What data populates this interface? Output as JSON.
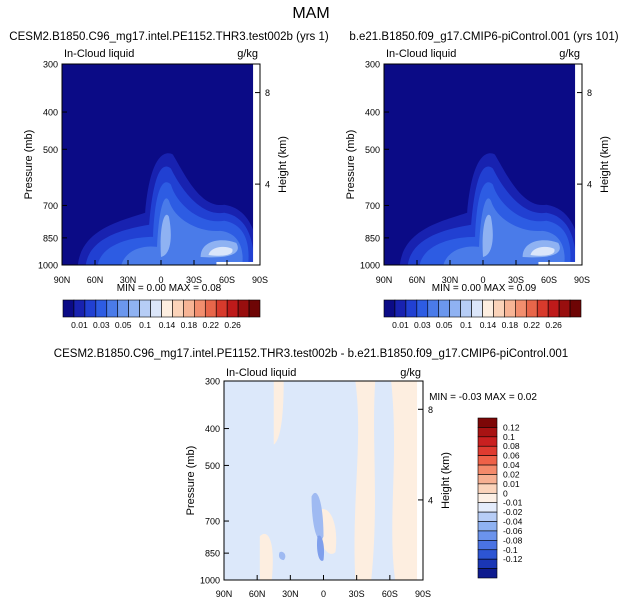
{
  "page_title": "MAM",
  "chart_data": [
    {
      "type": "heatmap",
      "title": "CESM2.B1850.C96_mg17.intel.PE1152.THR3.test002b (yrs 1)",
      "variable": "In-Cloud liquid",
      "units": "g/kg",
      "ylabel": "Pressure (mb)",
      "ylabel_right": "Height (km)",
      "x_ticks": [
        "90N",
        "60N",
        "30N",
        "0",
        "30S",
        "60S",
        "90S"
      ],
      "y_ticks": [
        "300",
        "400",
        "500",
        "700",
        "850",
        "1000"
      ],
      "y_right_ticks": [
        "8",
        "4"
      ],
      "stats": "MIN =  0.00   MAX =  0.08",
      "min": 0.0,
      "max": 0.08
    },
    {
      "type": "heatmap",
      "title": "b.e21.B1850.f09_g17.CMIP6-piControl.001 (yrs 101)",
      "variable": "In-Cloud liquid",
      "units": "g/kg",
      "ylabel": "Pressure (mb)",
      "ylabel_right": "Height (km)",
      "x_ticks": [
        "90N",
        "60N",
        "30N",
        "0",
        "30S",
        "60S",
        "90S"
      ],
      "y_ticks": [
        "300",
        "400",
        "500",
        "700",
        "850",
        "1000"
      ],
      "y_right_ticks": [
        "8",
        "4"
      ],
      "stats": "MIN =  0.00   MAX =  0.09",
      "min": 0.0,
      "max": 0.09
    },
    {
      "type": "heatmap",
      "title": "CESM2.B1850.C96_mg17.intel.PE1152.THR3.test002b - b.e21.B1850.f09_g17.CMIP6-piControl.001",
      "variable": "In-Cloud liquid",
      "units": "g/kg",
      "ylabel": "Pressure (mb)",
      "ylabel_right": "Height (km)",
      "x_ticks": [
        "90N",
        "60N",
        "30N",
        "0",
        "30S",
        "60S",
        "90S"
      ],
      "y_ticks": [
        "300",
        "400",
        "500",
        "700",
        "850",
        "1000"
      ],
      "y_right_ticks": [
        "8",
        "4"
      ],
      "stats": "MIN = -0.03   MAX =  0.02",
      "min": -0.03,
      "max": 0.02
    }
  ],
  "colorbar_main": {
    "labels": [
      "0.01",
      "0.03",
      "0.05",
      "0.1",
      "0.14",
      "0.18",
      "0.22",
      "0.26"
    ],
    "colors": [
      "#0b0b86",
      "#1822b0",
      "#2140d2",
      "#2d5ce3",
      "#4a7be9",
      "#6b97ee",
      "#8fb2f2",
      "#b6cdf6",
      "#dbe6fa",
      "#fdeee0",
      "#fbd3b9",
      "#f7b495",
      "#f28e6e",
      "#e8664a",
      "#d83a2c",
      "#be1a1a",
      "#980e0e",
      "#6e0505"
    ]
  },
  "colorbar_diff": {
    "labels": [
      "0.12",
      "0.1",
      "0.08",
      "0.06",
      "0.04",
      "0.02",
      "0.01",
      "0",
      "-0.01",
      "-0.02",
      "-0.04",
      "-0.06",
      "-0.08",
      "-0.1",
      "-0.12"
    ],
    "colors": [
      "#7d0707",
      "#a81313",
      "#c92020",
      "#df3b30",
      "#ee6148",
      "#f48a6b",
      "#f7b092",
      "#fbd4bb",
      "#fdf0e5",
      "#e4ecfb",
      "#b7cdf6",
      "#8fb2f2",
      "#6b93ec",
      "#4a73e3",
      "#2d55d3",
      "#1a36b5",
      "#0e1b8e"
    ]
  },
  "colors": {
    "base": "#0b0b86",
    "diff_base": "#dce8fa",
    "diff_pos": "#fdeee0",
    "diff_neg": "#9fbaf2"
  }
}
